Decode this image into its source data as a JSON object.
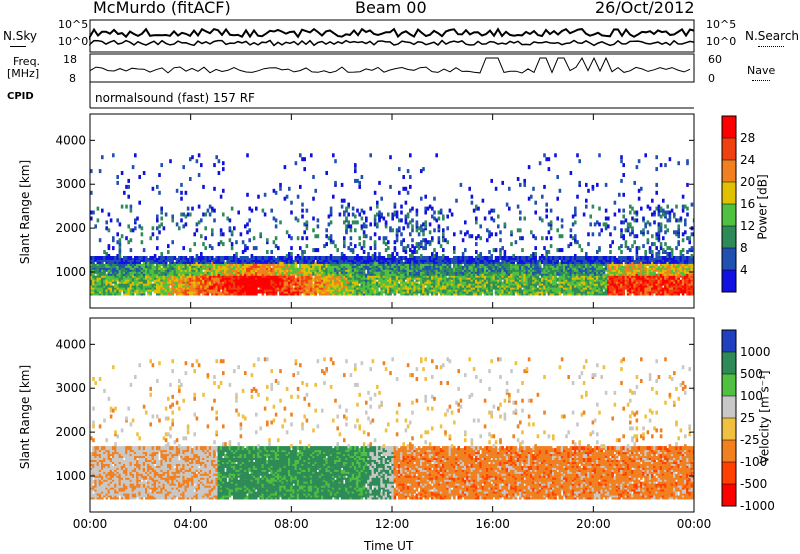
{
  "header": {
    "station": "McMurdo (fitACF)",
    "beam": "Beam 00",
    "date": "26/Oct/2012",
    "left_top_label": "N.Sky",
    "left_top_ticks": [
      "10^5",
      "10^0"
    ],
    "right_top_label": "N.Search",
    "right_top_ticks": [
      "10^5",
      "10^0"
    ],
    "freq_label_line1": "Freq.",
    "freq_label_line2": "[MHz]",
    "freq_ticks": [
      "18",
      "8"
    ],
    "nave_label": "Nave",
    "nave_ticks": [
      "60",
      "0"
    ],
    "cpid_label": "CPID",
    "cpid_value": "normalsound (fast) 157 RF"
  },
  "chart_data": [
    {
      "type": "heatmap",
      "name": "power",
      "ylabel": "Slant Range [km]",
      "yticks": [
        1000,
        2000,
        3000,
        4000
      ],
      "ylim": [
        180,
        4600
      ],
      "xlim_hours": [
        0,
        24
      ],
      "colorbar": {
        "label": "Power [dB]",
        "ticks": [
          "4",
          "8",
          "12",
          "16",
          "20",
          "24",
          "28"
        ],
        "colors": [
          "#1010e0",
          "#2050b0",
          "#2e8b57",
          "#50c040",
          "#e0c000",
          "#f08020",
          "#f04010",
          "#ff0000"
        ]
      },
      "bands": [
        {
          "range_km": [
            500,
            1300
          ],
          "typical": "8-28 dB, strongest 02:00-11:00 and 21:00-24:00"
        },
        {
          "range_km": [
            1300,
            2500
          ],
          "typical": "4-12 dB, patchy"
        },
        {
          "range_km": [
            2500,
            3800
          ],
          "typical": "4-8 dB, sparse"
        }
      ]
    },
    {
      "type": "heatmap",
      "name": "velocity",
      "xlabel": "Time UT",
      "ylabel": "Slant Range [km]",
      "yticks": [
        1000,
        2000,
        3000,
        4000
      ],
      "ylim": [
        180,
        4600
      ],
      "xlim_hours": [
        0,
        24
      ],
      "xticks": [
        "00:00",
        "04:00",
        "08:00",
        "12:00",
        "16:00",
        "20:00",
        "00:00"
      ],
      "colorbar": {
        "label": "Velocity [m s⁻¹]",
        "ticks": [
          "1000",
          "500",
          "100",
          "25",
          "-25",
          "-100",
          "-500",
          "-1000"
        ],
        "colors": [
          "#2040c0",
          "#2e8b57",
          "#50c040",
          "#c8c8c8",
          "#f0c040",
          "#f08020",
          "#ff4000",
          "#ff0000"
        ]
      },
      "bands": [
        {
          "range_km": [
            500,
            1700
          ],
          "typical": "gray / -25 to 25 m/s at 00:00-05:00, green 100-500 m/s at 05:00-11:00, orange -100 to -500 m/s at 12:00-24:00"
        },
        {
          "range_km": [
            1700,
            3800
          ],
          "typical": "sparse orange and gray"
        }
      ]
    }
  ]
}
